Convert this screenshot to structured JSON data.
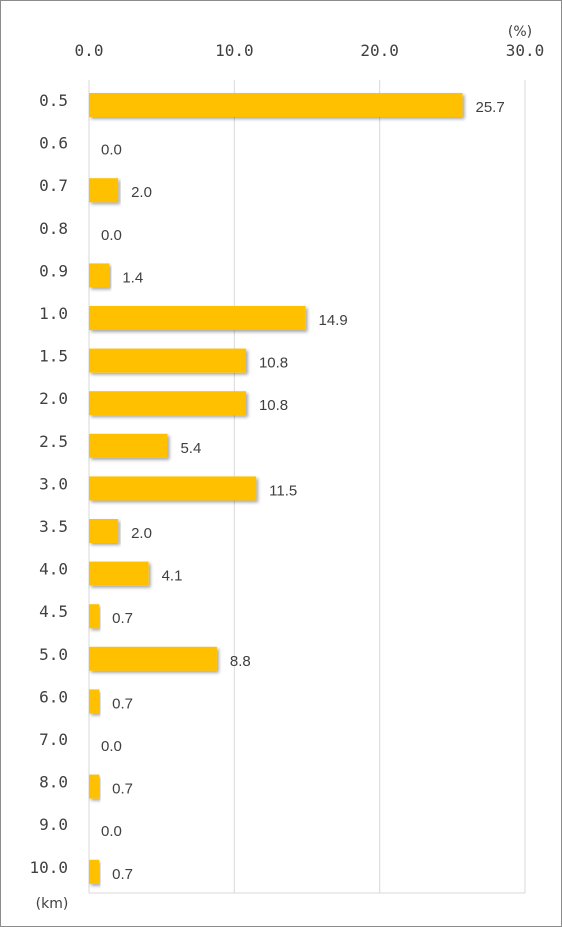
{
  "chart_data": {
    "type": "bar",
    "orientation": "horizontal",
    "x_unit": "(%)",
    "y_unit": "(km)",
    "x_ticks": [
      "0.0",
      "10.0",
      "20.0",
      "30.0"
    ],
    "xlim": [
      0,
      30
    ],
    "grid": true,
    "bar_color": "#FFC000",
    "categories": [
      "0.5",
      "0.6",
      "0.7",
      "0.8",
      "0.9",
      "1.0",
      "1.5",
      "2.0",
      "2.5",
      "3.0",
      "3.5",
      "4.0",
      "4.5",
      "5.0",
      "6.0",
      "7.0",
      "8.0",
      "9.0",
      "10.0"
    ],
    "values": [
      25.7,
      0.0,
      2.0,
      0.0,
      1.4,
      14.9,
      10.8,
      10.8,
      5.4,
      11.5,
      2.0,
      4.1,
      0.7,
      8.8,
      0.7,
      0.0,
      0.7,
      0.0,
      0.7
    ],
    "data_labels": [
      "25.7",
      "0.0",
      "2.0",
      "0.0",
      "1.4",
      "14.9",
      "10.8",
      "10.8",
      "5.4",
      "11.5",
      "2.0",
      "4.1",
      "0.7",
      "8.8",
      "0.7",
      "0.0",
      "0.7",
      "0.0",
      "0.7"
    ]
  }
}
